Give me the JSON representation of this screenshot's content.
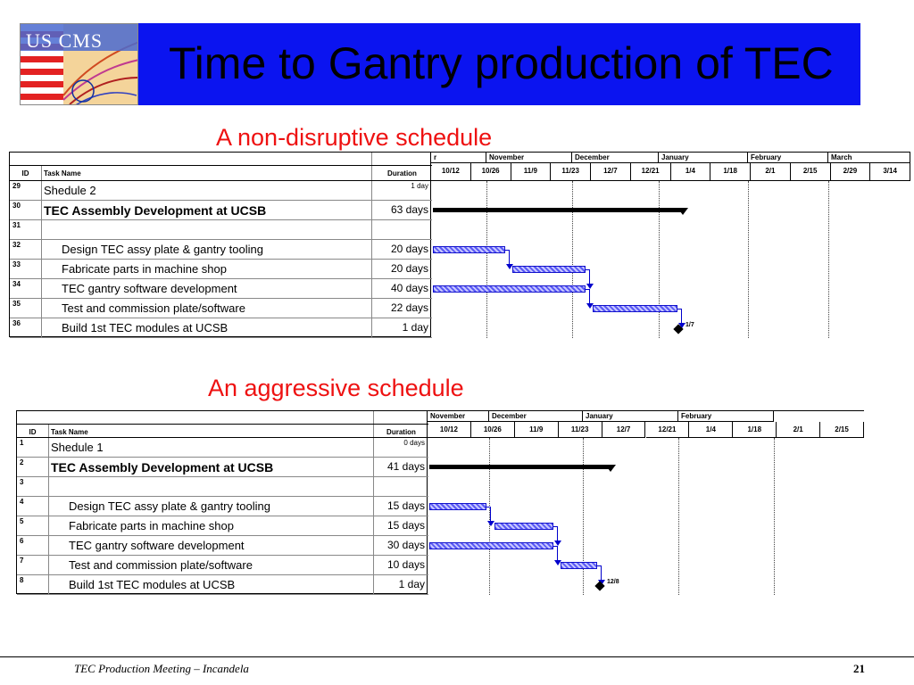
{
  "title": "Time to Gantry production of TEC",
  "logo_text": "US CMS",
  "colors": {
    "banner": "#0b14f0",
    "heading": "#ee1111",
    "bar": "#5a5af5",
    "link": "#0000cc"
  },
  "schedules": [
    {
      "heading": "A non-disruptive schedule",
      "header": {
        "id": "ID",
        "task": "Task Name",
        "duration": "Duration"
      },
      "months": [
        "r",
        "November",
        "December",
        "January",
        "February",
        "March"
      ],
      "weeks": [
        "10/12",
        "10/26",
        "11/9",
        "11/23",
        "12/7",
        "12/21",
        "1/4",
        "1/18",
        "2/1",
        "2/15",
        "2/29",
        "3/14"
      ],
      "rows": [
        {
          "id": "29",
          "name": "Shedule 2",
          "duration": "1 day"
        },
        {
          "id": "30",
          "name": "TEC Assembly Development at UCSB",
          "duration": "63 days"
        },
        {
          "id": "31",
          "name": "",
          "duration": ""
        },
        {
          "id": "32",
          "name": "Design TEC assy plate & gantry tooling",
          "duration": "20 days"
        },
        {
          "id": "33",
          "name": "Fabricate parts in machine shop",
          "duration": "20 days"
        },
        {
          "id": "34",
          "name": "TEC gantry software development",
          "duration": "40 days"
        },
        {
          "id": "35",
          "name": "Test and commission plate/software",
          "duration": "22 days"
        },
        {
          "id": "36",
          "name": "Build 1st TEC modules at UCSB",
          "duration": "1 day"
        }
      ],
      "milestone_label": "1/7"
    },
    {
      "heading": "An aggressive schedule",
      "header": {
        "id": "ID",
        "task": "Task Name",
        "duration": "Duration"
      },
      "months": [
        "November",
        "December",
        "January",
        "February"
      ],
      "weeks": [
        "10/12",
        "10/26",
        "11/9",
        "11/23",
        "12/7",
        "12/21",
        "1/4",
        "1/18",
        "2/1",
        "2/15"
      ],
      "rows": [
        {
          "id": "1",
          "name": "Shedule 1",
          "duration": "0 days"
        },
        {
          "id": "2",
          "name": "TEC Assembly Development at UCSB",
          "duration": "41 days"
        },
        {
          "id": "3",
          "name": "",
          "duration": ""
        },
        {
          "id": "4",
          "name": "Design TEC assy plate & gantry tooling",
          "duration": "15 days"
        },
        {
          "id": "5",
          "name": "Fabricate parts in machine shop",
          "duration": "15 days"
        },
        {
          "id": "6",
          "name": "TEC gantry software development",
          "duration": "30 days"
        },
        {
          "id": "7",
          "name": "Test and commission plate/software",
          "duration": "10 days"
        },
        {
          "id": "8",
          "name": "Build 1st TEC modules at UCSB",
          "duration": "1 day"
        }
      ],
      "milestone_label": "12/8"
    }
  ],
  "footer": {
    "text": "TEC Production Meeting  – Incandela",
    "page": "21"
  }
}
